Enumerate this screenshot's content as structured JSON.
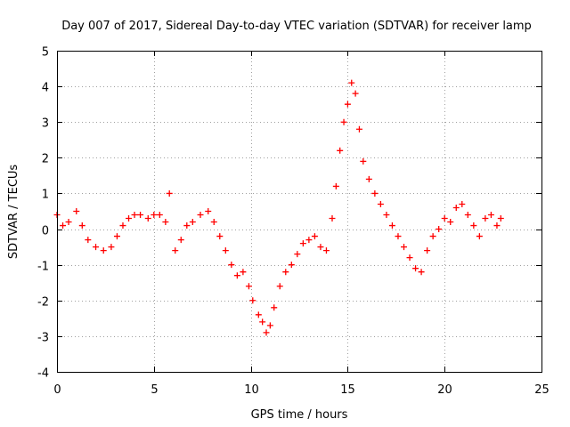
{
  "chart_data": {
    "type": "scatter",
    "title": "Day 007 of 2017, Sidereal Day-to-day VTEC variation (SDTVAR) for receiver lamp",
    "xlabel": "GPS time / hours",
    "ylabel": "SDTVAR / TECUs",
    "xlim": [
      0,
      25
    ],
    "ylim": [
      -4,
      5
    ],
    "xticks": [
      "0",
      "5",
      "10",
      "15",
      "20",
      "25"
    ],
    "yticks": [
      "-4",
      "-3",
      "-2",
      "-1",
      "0",
      "1",
      "2",
      "3",
      "4",
      "5"
    ],
    "grid": true,
    "marker": "plus",
    "series": [
      {
        "name": "SDTVAR",
        "color": "#ff0000",
        "x": [
          0.0,
          0.3,
          0.6,
          1.0,
          1.3,
          1.6,
          2.0,
          2.4,
          2.8,
          3.1,
          3.4,
          3.7,
          4.0,
          4.3,
          4.7,
          5.0,
          5.3,
          5.6,
          5.8,
          6.1,
          6.4,
          6.7,
          7.0,
          7.4,
          7.8,
          8.1,
          8.4,
          8.7,
          9.0,
          9.3,
          9.6,
          9.9,
          10.1,
          10.4,
          10.6,
          10.8,
          11.0,
          11.2,
          11.5,
          11.8,
          12.1,
          12.4,
          12.7,
          13.0,
          13.3,
          13.6,
          13.9,
          14.2,
          14.4,
          14.6,
          14.8,
          15.0,
          15.2,
          15.4,
          15.6,
          15.8,
          16.1,
          16.4,
          16.7,
          17.0,
          17.3,
          17.6,
          17.9,
          18.2,
          18.5,
          18.8,
          19.1,
          19.4,
          19.7,
          20.0,
          20.3,
          20.6,
          20.9,
          21.2,
          21.5,
          21.8,
          22.1,
          22.4,
          22.7,
          22.9
        ],
        "values": [
          0.4,
          0.1,
          0.2,
          0.5,
          0.1,
          -0.3,
          -0.5,
          -0.6,
          -0.5,
          -0.2,
          0.1,
          0.3,
          0.4,
          0.4,
          0.3,
          0.4,
          0.4,
          0.2,
          1.0,
          -0.6,
          -0.3,
          0.1,
          0.2,
          0.4,
          0.5,
          0.2,
          -0.2,
          -0.6,
          -1.0,
          -1.3,
          -1.2,
          -1.6,
          -2.0,
          -2.4,
          -2.6,
          -2.9,
          -2.7,
          -2.2,
          -1.6,
          -1.2,
          -1.0,
          -0.7,
          -0.4,
          -0.3,
          -0.2,
          -0.5,
          -0.6,
          0.3,
          1.2,
          2.2,
          3.0,
          3.5,
          4.1,
          3.8,
          2.8,
          1.9,
          1.4,
          1.0,
          0.7,
          0.4,
          0.1,
          -0.2,
          -0.5,
          -0.8,
          -1.1,
          -1.2,
          -0.6,
          -0.2,
          0.0,
          0.3,
          0.2,
          0.6,
          0.7,
          0.4,
          0.1,
          -0.2,
          0.3,
          0.4,
          0.1,
          0.3
        ]
      }
    ]
  }
}
